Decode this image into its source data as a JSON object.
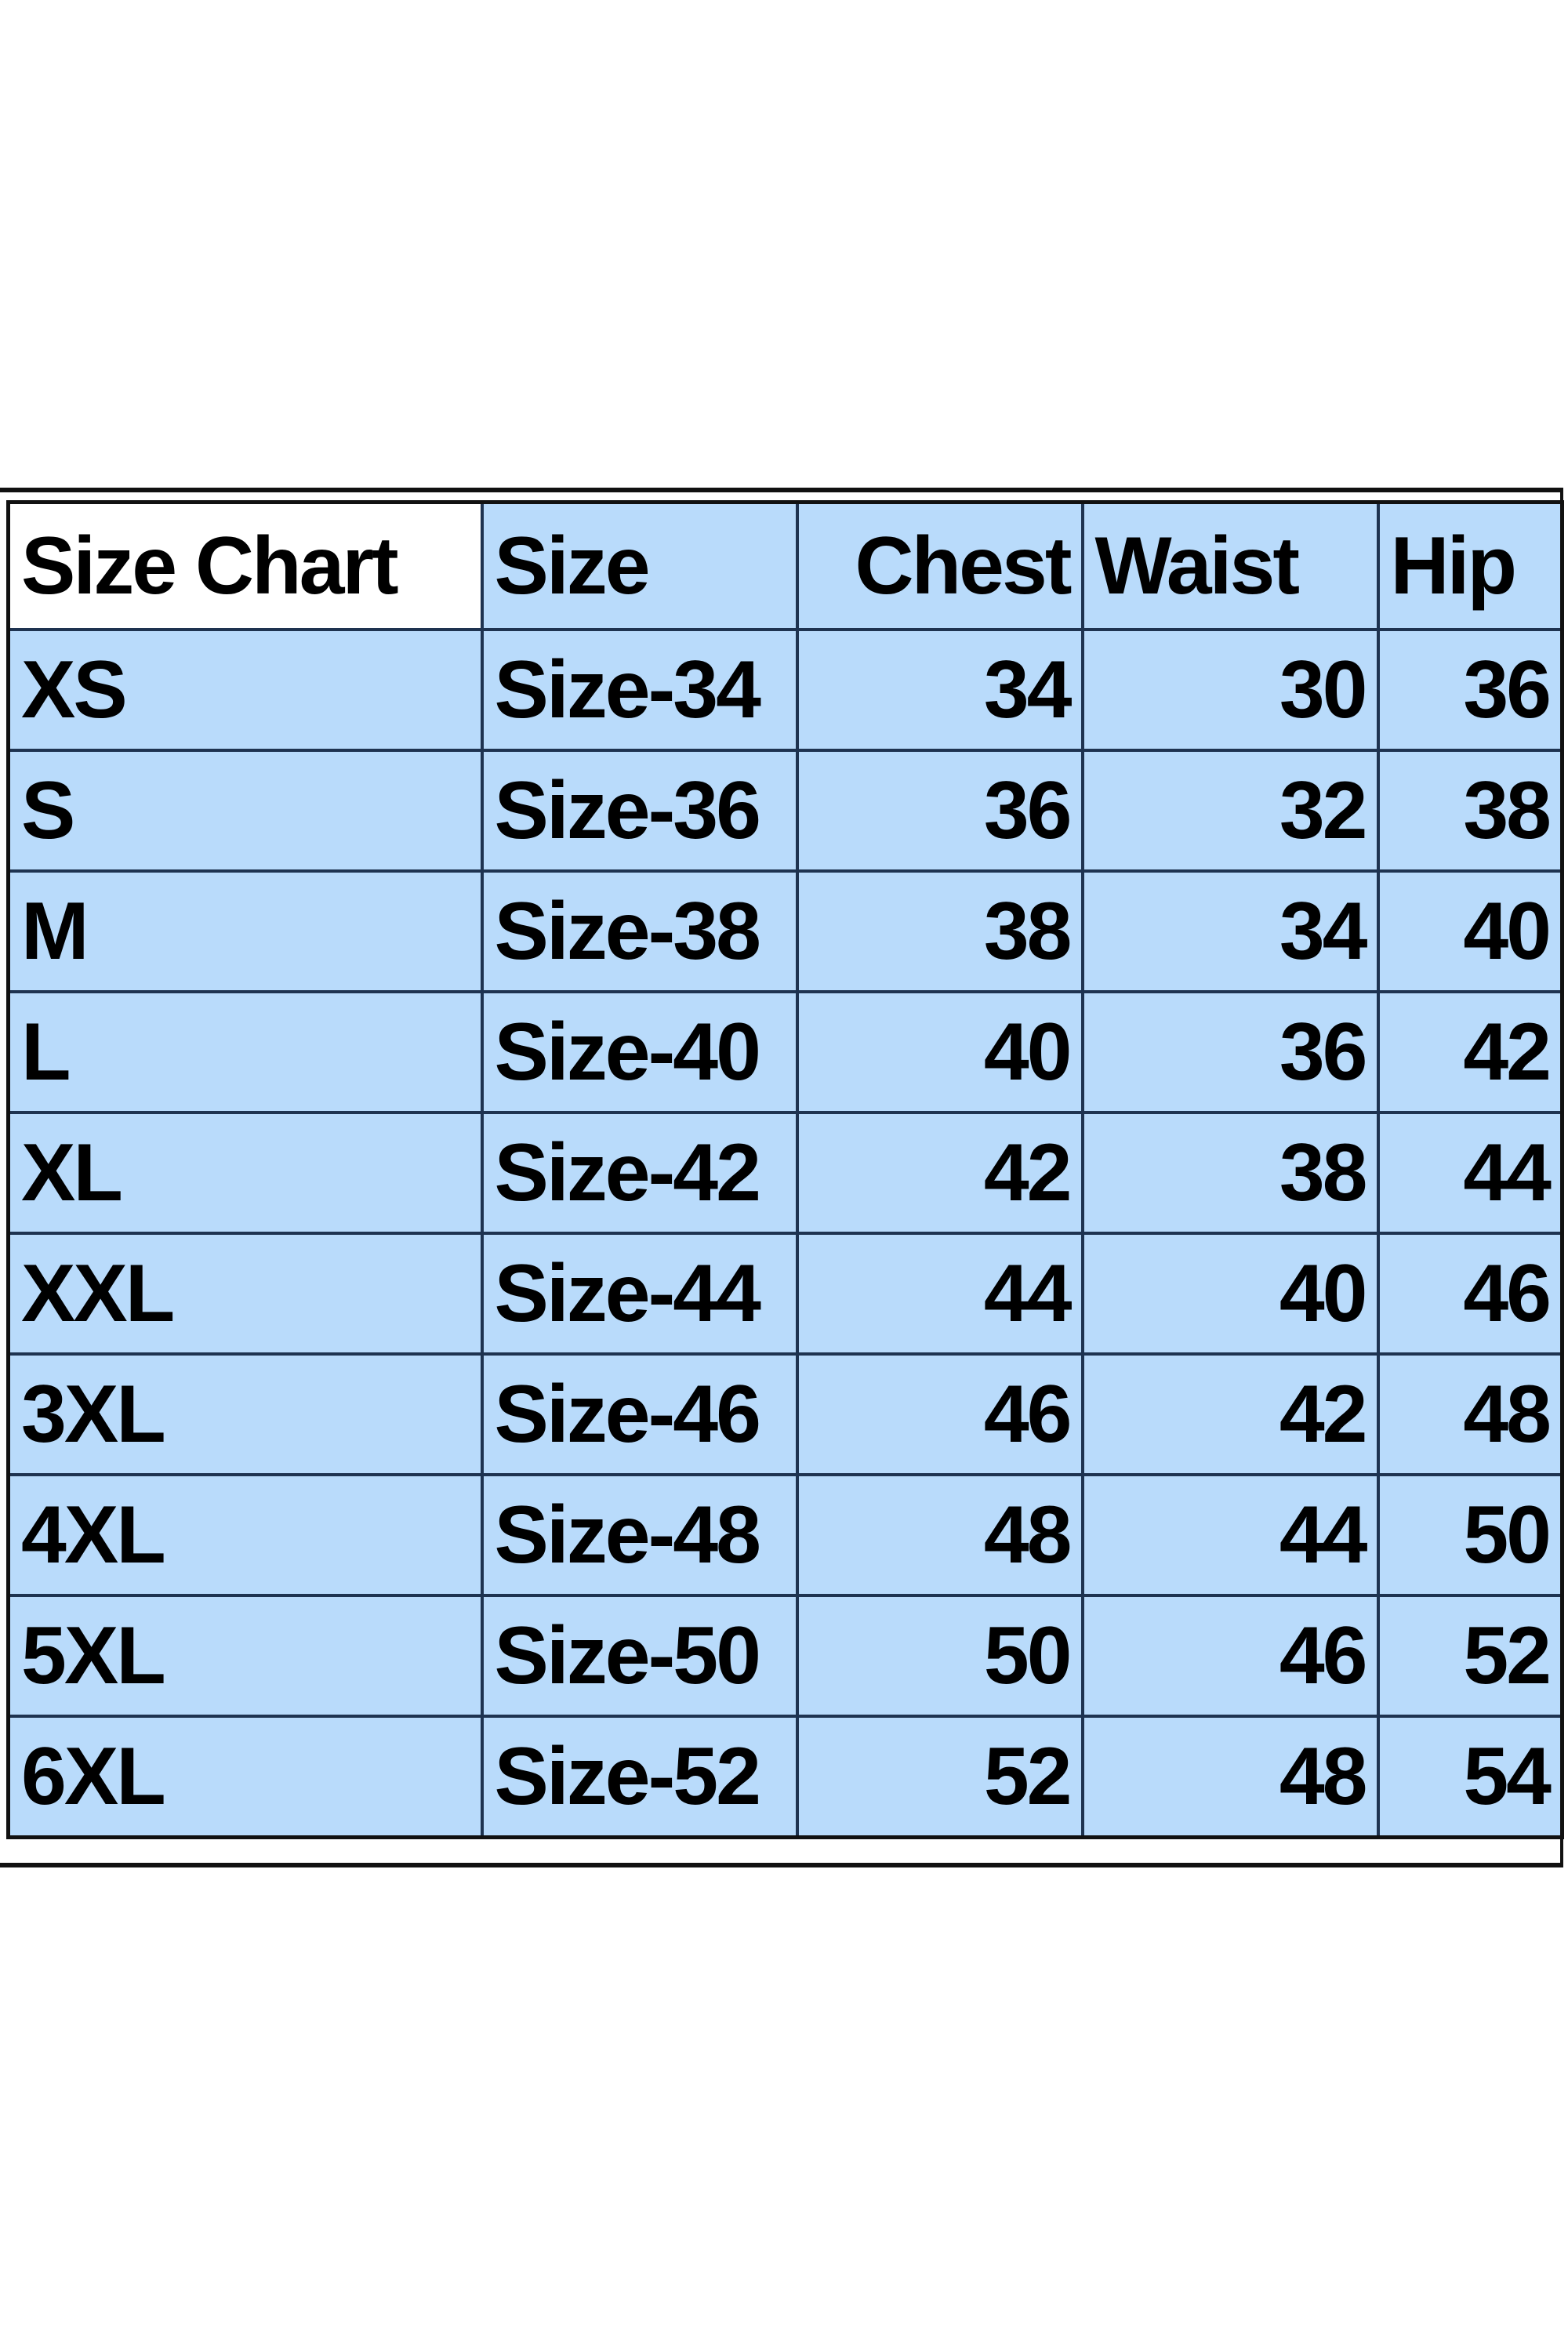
{
  "table": {
    "headers": [
      "Size Chart",
      "Size",
      "Chest",
      "Waist",
      "Hip"
    ],
    "rows": [
      [
        "XS",
        "Size-34",
        "34",
        "30",
        "36"
      ],
      [
        "S",
        "Size-36",
        "36",
        "32",
        "38"
      ],
      [
        "M",
        "Size-38",
        "38",
        "34",
        "40"
      ],
      [
        "L",
        "Size-40",
        "40",
        "36",
        "42"
      ],
      [
        "XL",
        "Size-42",
        "42",
        "38",
        "44"
      ],
      [
        "XXL",
        "Size-44",
        "44",
        "40",
        "46"
      ],
      [
        "3XL",
        "Size-46",
        "46",
        "42",
        "48"
      ],
      [
        "4XL",
        "Size-48",
        "48",
        "44",
        "50"
      ],
      [
        "5XL",
        "Size-50",
        "50",
        "46",
        "52"
      ],
      [
        "6XL",
        "Size-52",
        "52",
        "48",
        "54"
      ]
    ]
  },
  "colors": {
    "cell_fill": "#b9dbfb",
    "border": "#1e3350",
    "text": "#000000"
  }
}
